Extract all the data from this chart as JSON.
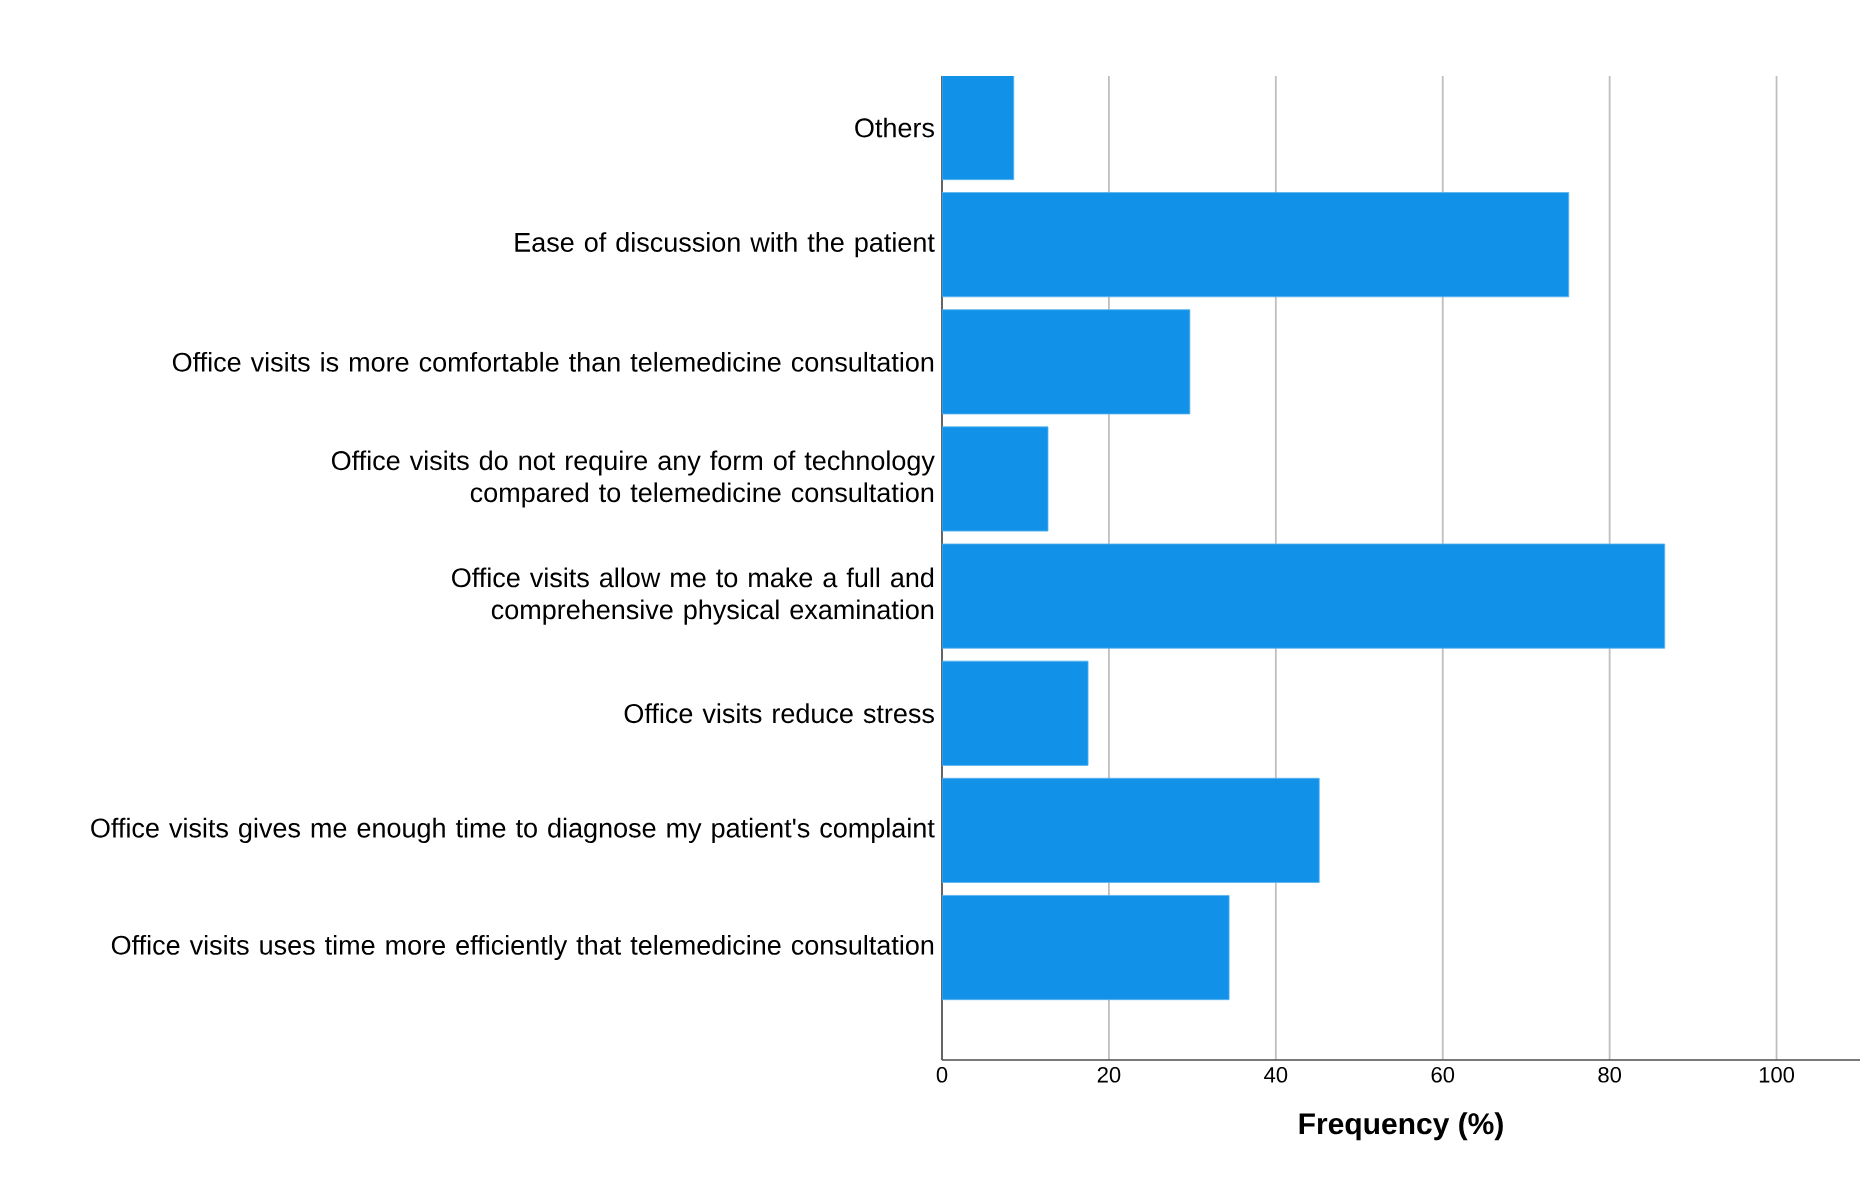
{
  "chart_data": {
    "type": "bar",
    "orientation": "horizontal",
    "xlabel": "Frequency (%)",
    "categories": [
      "Others",
      "Ease of discussion with the patient",
      "Office visits is more comfortable than telemedicine consultation",
      "Office visits do not require any form of technology compared to telemedicine consultation",
      "Office visits allow me to make a full and comprehensive physical examination",
      "Office visits reduce stress",
      "Office visits gives me enough time to diagnose my patient's complaint",
      "Office visits uses time more efficiently that telemedicine consultation"
    ],
    "values": [
      8.6,
      75.1,
      29.7,
      12.7,
      86.6,
      17.5,
      45.2,
      34.4
    ],
    "color": "#1192e8",
    "xlim": [
      0,
      110
    ],
    "xticks": [
      0,
      20,
      40,
      60,
      80,
      100
    ],
    "grid": "x"
  }
}
